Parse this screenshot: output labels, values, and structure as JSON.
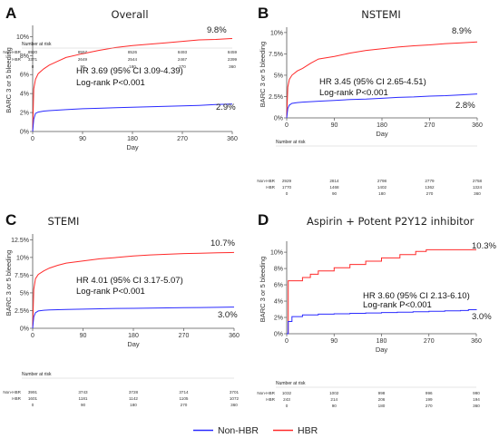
{
  "chart_data": [
    {
      "type": "line",
      "panel": "A",
      "title": "Overall",
      "ylabel": "BARC 3 or 5 bleeding",
      "xlabel": "Day",
      "xticks": [
        "0",
        "90",
        "180",
        "270",
        "360"
      ],
      "yticks": [
        "0%",
        "2%",
        "4%",
        "6%",
        "8%",
        "10%"
      ],
      "xlim": [
        0,
        360
      ],
      "ylim": [
        0,
        10.8
      ],
      "series": [
        {
          "name": "HBR",
          "color": "#ff2a2a",
          "x": [
            0,
            2,
            5,
            10,
            20,
            30,
            45,
            60,
            90,
            120,
            150,
            180,
            210,
            240,
            270,
            300,
            330,
            360
          ],
          "y": [
            0,
            4.5,
            5.5,
            6.1,
            6.6,
            7.0,
            7.4,
            7.8,
            8.2,
            8.55,
            8.85,
            9.05,
            9.2,
            9.35,
            9.5,
            9.65,
            9.7,
            9.8
          ]
        },
        {
          "name": "Non-HBR",
          "color": "#2a2aff",
          "x": [
            0,
            2,
            5,
            10,
            20,
            30,
            60,
            90,
            120,
            150,
            180,
            210,
            240,
            270,
            300,
            330,
            360
          ],
          "y": [
            0,
            1.3,
            1.9,
            2.05,
            2.15,
            2.2,
            2.3,
            2.4,
            2.45,
            2.5,
            2.55,
            2.6,
            2.65,
            2.7,
            2.75,
            2.85,
            2.9
          ]
        }
      ],
      "end_labels": {
        "HBR": "9.8%",
        "Non-HBR": "2.9%"
      },
      "stats": [
        "HR 3.69 (95% CI 3.09-4.39)",
        "Log-rank P<0.001"
      ],
      "risk_table": {
        "header": "Number at risk",
        "rows": [
          {
            "label": "Non-HBR",
            "values": [
              "8920",
              "8557",
              "8526",
              "8493",
              "8459"
            ]
          },
          {
            "label": "HBR",
            "values": [
              "3371",
              "2649",
              "2544",
              "2467",
              "2399"
            ]
          }
        ],
        "days": [
          "0",
          "90",
          "180",
          "270",
          "360"
        ]
      }
    },
    {
      "type": "line",
      "panel": "B",
      "title": "NSTEMI",
      "ylabel": "BARC 3 or 5 bleeding",
      "xlabel": "Day",
      "xticks": [
        "0",
        "90",
        "180",
        "270",
        "360"
      ],
      "yticks": [
        "0%",
        "2.5%",
        "5%",
        "7.5%",
        "10%"
      ],
      "xlim": [
        0,
        360
      ],
      "ylim": [
        0,
        10.2
      ],
      "series": [
        {
          "name": "HBR",
          "color": "#ff2a2a",
          "x": [
            0,
            2,
            5,
            10,
            20,
            30,
            45,
            60,
            90,
            120,
            150,
            180,
            210,
            240,
            270,
            300,
            330,
            360
          ],
          "y": [
            0,
            3.6,
            4.5,
            5.0,
            5.5,
            5.8,
            6.4,
            6.9,
            7.2,
            7.6,
            7.9,
            8.1,
            8.3,
            8.45,
            8.55,
            8.7,
            8.8,
            8.9
          ]
        },
        {
          "name": "Non-HBR",
          "color": "#2a2aff",
          "x": [
            0,
            2,
            5,
            10,
            20,
            30,
            60,
            90,
            120,
            150,
            180,
            210,
            240,
            270,
            300,
            330,
            360
          ],
          "y": [
            0,
            1.1,
            1.5,
            1.7,
            1.8,
            1.85,
            1.95,
            2.05,
            2.15,
            2.2,
            2.3,
            2.4,
            2.45,
            2.55,
            2.6,
            2.7,
            2.8
          ]
        }
      ],
      "end_labels": {
        "HBR": "8.9%",
        "Non-HBR": "2.8%"
      },
      "stats": [
        "HR 3.45 (95% CI 2.65-4.51)",
        "Log-rank P<0.001"
      ],
      "risk_table": {
        "header": "Number at risk",
        "rows": [
          {
            "label": "Non-HBR",
            "values": [
              "2929",
              "2814",
              "2798",
              "2779",
              "2758"
            ]
          },
          {
            "label": "HBR",
            "values": [
              "1770",
              "1468",
              "1402",
              "1362",
              "1324"
            ]
          }
        ],
        "days": [
          "0",
          "90",
          "180",
          "270",
          "360"
        ]
      }
    },
    {
      "type": "line",
      "panel": "C",
      "title": "STEMI",
      "ylabel": "BARC 3 or 5 bleeding",
      "xlabel": "Day",
      "xticks": [
        "0",
        "90",
        "180",
        "270",
        "360"
      ],
      "yticks": [
        "0%",
        "2.5%",
        "5%",
        "7.5%",
        "10%",
        "12.5%"
      ],
      "xlim": [
        0,
        360
      ],
      "ylim": [
        0,
        12.8
      ],
      "series": [
        {
          "name": "HBR",
          "color": "#ff2a2a",
          "x": [
            0,
            2,
            5,
            10,
            20,
            30,
            45,
            60,
            90,
            120,
            150,
            180,
            210,
            240,
            270,
            300,
            330,
            360
          ],
          "y": [
            0,
            5.5,
            7.0,
            7.6,
            8.1,
            8.5,
            8.9,
            9.2,
            9.5,
            9.8,
            10.0,
            10.2,
            10.35,
            10.45,
            10.55,
            10.6,
            10.65,
            10.7
          ]
        },
        {
          "name": "Non-HBR",
          "color": "#2a2aff",
          "x": [
            0,
            2,
            5,
            10,
            20,
            30,
            60,
            90,
            120,
            150,
            180,
            210,
            240,
            270,
            300,
            330,
            360
          ],
          "y": [
            0,
            1.6,
            2.2,
            2.45,
            2.55,
            2.6,
            2.65,
            2.7,
            2.75,
            2.8,
            2.82,
            2.85,
            2.88,
            2.9,
            2.93,
            2.96,
            3.0
          ]
        }
      ],
      "end_labels": {
        "HBR": "10.7%",
        "Non-HBR": "3.0%"
      },
      "stats": [
        "HR 4.01 (95% CI 3.17-5.07)",
        "Log-rank P<0.001"
      ],
      "risk_table": {
        "header": "Number at risk",
        "rows": [
          {
            "label": "Non-HBR",
            "values": [
              "3991",
              "3743",
              "3728",
              "3714",
              "3701"
            ]
          },
          {
            "label": "HBR",
            "values": [
              "1601",
              "1181",
              "1142",
              "1105",
              "1072"
            ]
          }
        ],
        "days": [
          "0",
          "90",
          "180",
          "270",
          "360"
        ]
      }
    },
    {
      "type": "line",
      "panel": "D",
      "title": "Aspirin + Potent P2Y12 inhibitor",
      "ylabel": "BARC 3 or 5 bleeding",
      "xlabel": "Day",
      "xticks": [
        "0",
        "90",
        "180",
        "270",
        "360"
      ],
      "yticks": [
        "0%",
        "2%",
        "4%",
        "6%",
        "8%",
        "10%"
      ],
      "xlim": [
        0,
        360
      ],
      "ylim": [
        0,
        10.9
      ],
      "series": [
        {
          "name": "HBR",
          "color": "#ff2a2a",
          "step": true,
          "x": [
            0,
            3,
            8,
            30,
            45,
            60,
            75,
            90,
            105,
            120,
            135,
            150,
            165,
            180,
            200,
            215,
            230,
            245,
            265,
            360
          ],
          "y": [
            0,
            6.5,
            6.5,
            6.9,
            7.3,
            7.7,
            7.7,
            8.1,
            8.1,
            8.5,
            8.5,
            8.9,
            8.9,
            9.3,
            9.3,
            9.7,
            9.7,
            10.1,
            10.3,
            10.3
          ]
        },
        {
          "name": "Non-HBR",
          "color": "#2a2aff",
          "step": true,
          "x": [
            0,
            3,
            10,
            30,
            60,
            90,
            120,
            150,
            180,
            210,
            240,
            270,
            300,
            330,
            345,
            360
          ],
          "y": [
            0,
            1.5,
            2.1,
            2.3,
            2.4,
            2.45,
            2.5,
            2.55,
            2.6,
            2.65,
            2.7,
            2.75,
            2.8,
            2.85,
            2.95,
            3.0
          ]
        }
      ],
      "end_labels": {
        "HBR": "10.3%",
        "Non-HBR": "3.0%"
      },
      "stats": [
        "HR 3.60 (95% CI 2.13-6.10)",
        "Log-rank P<0.001"
      ],
      "risk_table": {
        "header": "Number at risk",
        "rows": [
          {
            "label": "Non-HBR",
            "values": [
              "1032",
              "1002",
              "998",
              "996",
              "990"
            ]
          },
          {
            "label": "HBR",
            "values": [
              "243",
              "214",
              "206",
              "199",
              "194"
            ]
          }
        ],
        "days": [
          "0",
          "90",
          "180",
          "270",
          "360"
        ]
      }
    }
  ],
  "legend": [
    {
      "name": "Non-HBR",
      "color": "#2a2aff"
    },
    {
      "name": "HBR",
      "color": "#ff2a2a"
    }
  ]
}
